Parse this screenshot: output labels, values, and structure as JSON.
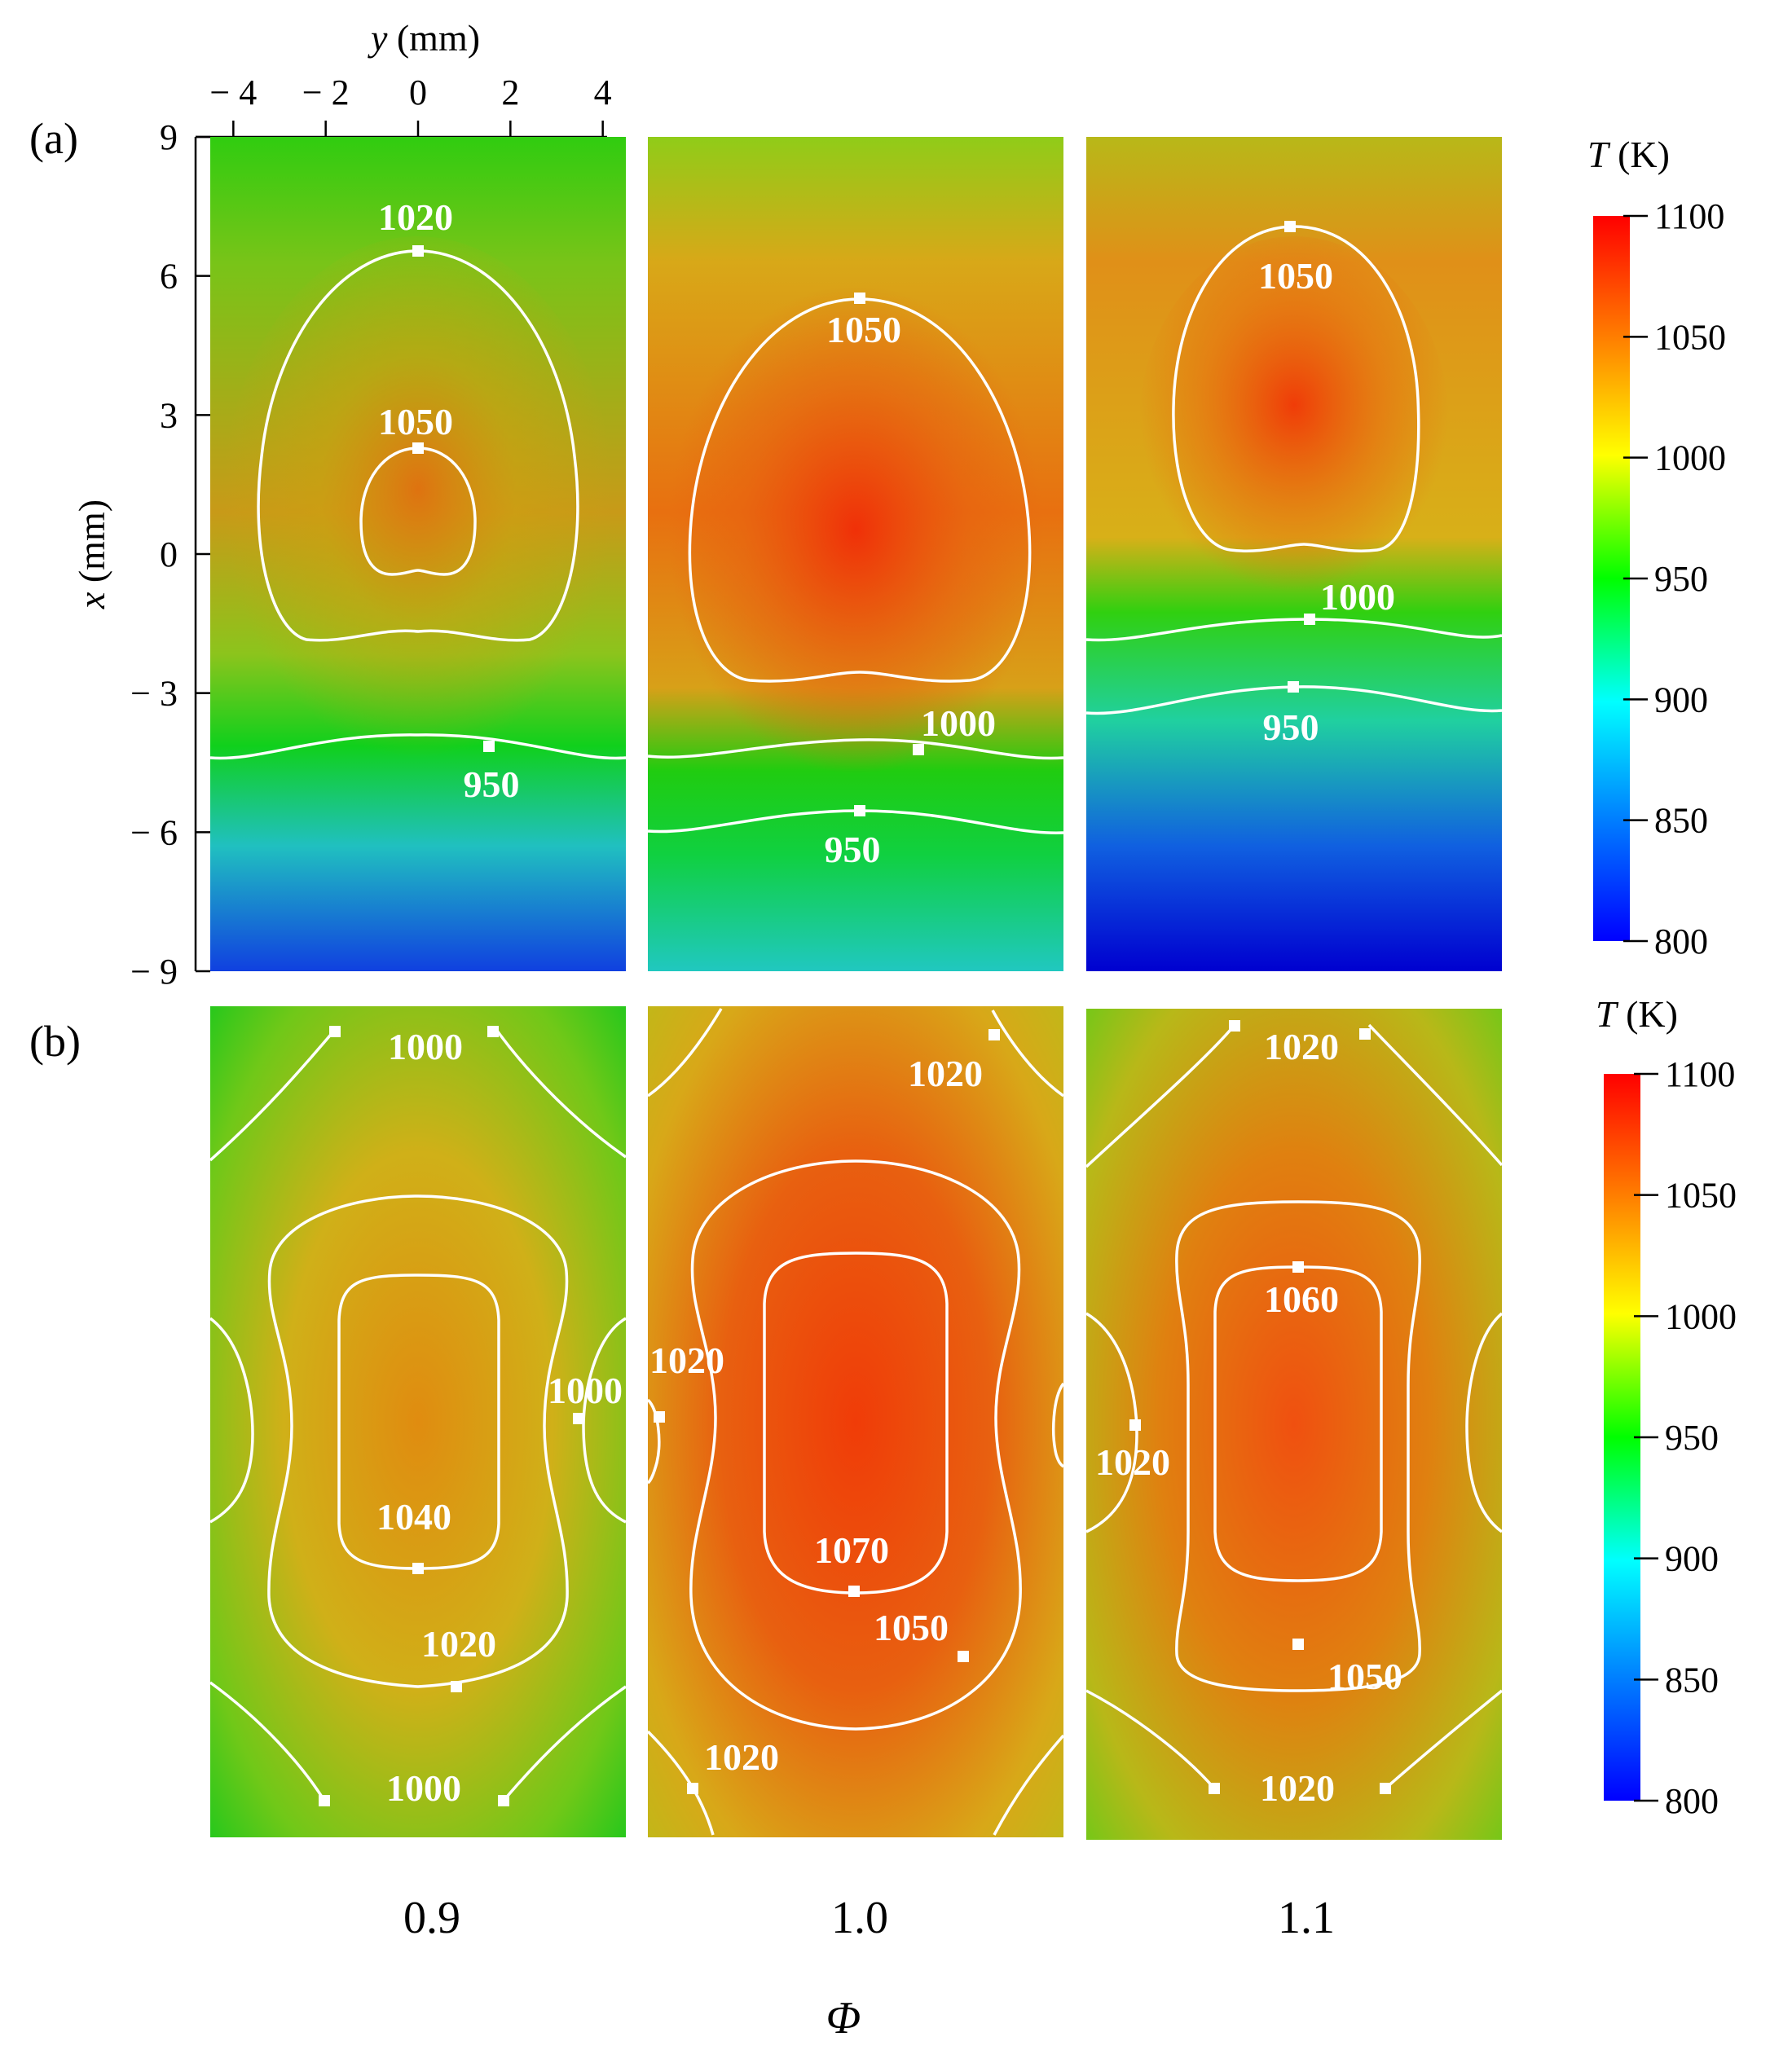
{
  "chart_data": {
    "type": "heatmap",
    "description_title": "Temperature fields for three equivalence ratios",
    "x_axis": {
      "label": "y (mm)",
      "label_var": "y",
      "label_unit": " (mm)",
      "ticks": [
        "− 4",
        "− 2",
        "0",
        "2",
        "4"
      ],
      "tick_values": [
        -4,
        -2,
        0,
        2,
        4
      ],
      "range": [
        -4.5,
        4.5
      ]
    },
    "y_axis": {
      "label": "x (mm)",
      "label_var": "x",
      "label_unit": " (mm)",
      "ticks": [
        "9",
        "6",
        "3",
        "0",
        "− 3",
        "− 6",
        "− 9"
      ],
      "tick_values": [
        9,
        6,
        3,
        0,
        -3,
        -6,
        -9
      ],
      "range": [
        -9,
        9
      ]
    },
    "bottom_axis": {
      "label": "Φ",
      "categories": [
        "0.9",
        "1.0",
        "1.1"
      ]
    },
    "colorbar": {
      "label_var": "T",
      "label_unit": " (K)",
      "ticks": [
        "1100",
        "1050",
        "1000",
        "950",
        "900",
        "850",
        "800"
      ],
      "tick_values": [
        1100,
        1050,
        1000,
        950,
        900,
        850,
        800
      ],
      "range": [
        800,
        1100
      ],
      "colormap": [
        "#0000ff",
        "#0080ff",
        "#00ffff",
        "#00ff00",
        "#ffff00",
        "#ff8000",
        "#ff0000"
      ]
    },
    "rows": [
      {
        "label": "(a)",
        "panels": [
          {
            "phi": "0.9",
            "peak_T": 1055,
            "contour_labels": [
              "1020",
              "1050",
              "950"
            ]
          },
          {
            "phi": "1.0",
            "peak_T": 1085,
            "contour_labels": [
              "1050",
              "1000",
              "950"
            ]
          },
          {
            "phi": "1.1",
            "peak_T": 1070,
            "contour_labels": [
              "1050",
              "1000",
              "950"
            ]
          }
        ]
      },
      {
        "label": "(b)",
        "panels": [
          {
            "phi": "0.9",
            "peak_T": 1045,
            "contour_labels": [
              "1000",
              "1040",
              "1000",
              "1020",
              "1000"
            ]
          },
          {
            "phi": "1.0",
            "peak_T": 1075,
            "contour_labels": [
              "1020",
              "1020",
              "1070",
              "1050",
              "1020"
            ]
          },
          {
            "phi": "1.1",
            "peak_T": 1065,
            "contour_labels": [
              "1020",
              "1060",
              "1020",
              "1050",
              "1020"
            ]
          }
        ]
      }
    ]
  }
}
